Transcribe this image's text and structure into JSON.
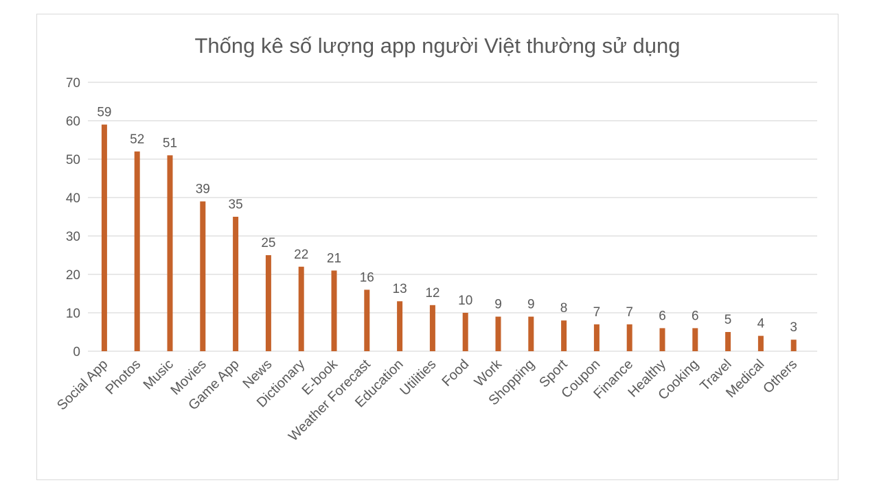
{
  "chart_data": {
    "type": "bar",
    "title": "Thống kê số lượng app người Việt thường sử dụng",
    "xlabel": "",
    "ylabel": "",
    "ylim": [
      0,
      70
    ],
    "yticks": [
      0,
      10,
      20,
      30,
      40,
      50,
      60,
      70
    ],
    "grid": true,
    "legend": "none",
    "categories": [
      "Social App",
      "Photos",
      "Music",
      "Movies",
      "Game App",
      "News",
      "Dictionary",
      "E-book",
      "Weather Forecast",
      "Education",
      "Utilities",
      "Food",
      "Work",
      "Shopping",
      "Sport",
      "Coupon",
      "Finance",
      "Healthy",
      "Cooking",
      "Travel",
      "Medical",
      "Others"
    ],
    "values": [
      59,
      52,
      51,
      39,
      35,
      25,
      22,
      21,
      16,
      13,
      12,
      10,
      9,
      9,
      8,
      7,
      7,
      6,
      6,
      5,
      4,
      3
    ],
    "colors": {
      "bar": "#C5622A",
      "grid": "#D9D9D9",
      "text": "#595959",
      "border": "#D9D9D9"
    }
  }
}
